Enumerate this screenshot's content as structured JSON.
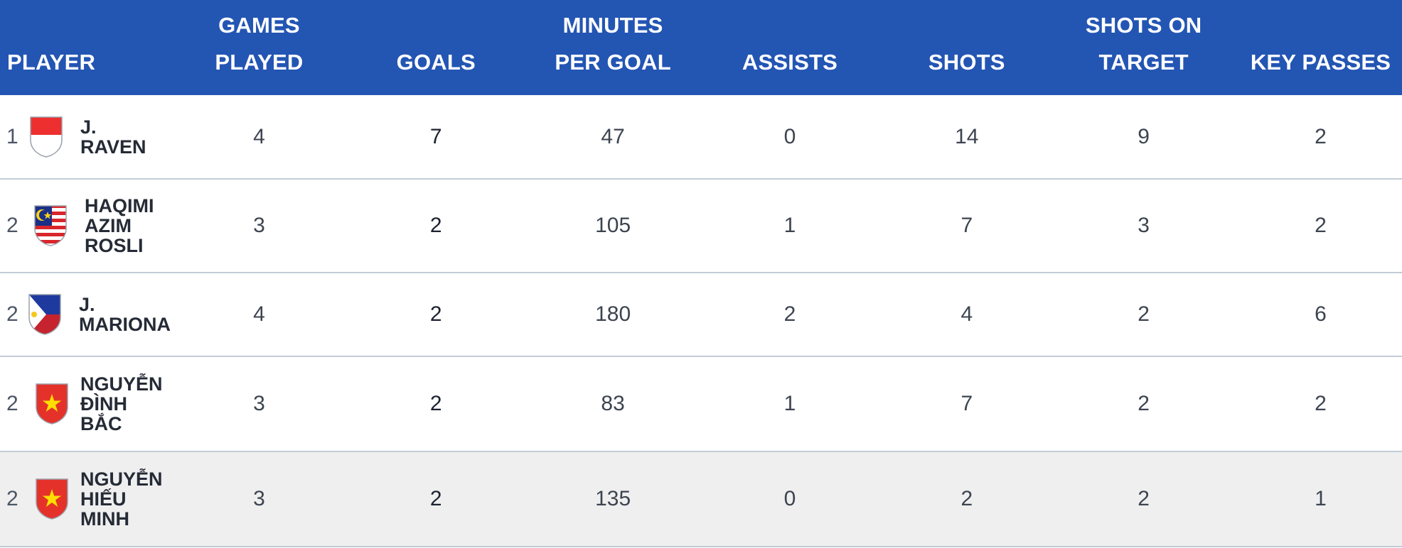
{
  "headers": {
    "player": "PLAYER",
    "games_played": [
      "GAMES",
      "PLAYED"
    ],
    "goals": "GOALS",
    "minutes_per_goal": [
      "MINUTES",
      "PER GOAL"
    ],
    "assists": "ASSISTS",
    "shots": "SHOTS",
    "shots_on_target": [
      "SHOTS ON",
      "TARGET"
    ],
    "key_passes": "KEY PASSES"
  },
  "colors": {
    "header_bg": "#2355b3",
    "row_divider": "#c3ccd6",
    "highlight_row": "#efefef"
  },
  "rows": [
    {
      "rank": "1",
      "flag": "indonesia-flag-icon",
      "name": "J.\nRAVEN",
      "games_played": "4",
      "goals": "7",
      "minutes_per_goal": "47",
      "assists": "0",
      "shots": "14",
      "shots_on_target": "9",
      "key_passes": "2"
    },
    {
      "rank": "2",
      "flag": "malaysia-flag-icon",
      "name": "HAQIMI\nAZIM\nROSLI",
      "games_played": "3",
      "goals": "2",
      "minutes_per_goal": "105",
      "assists": "1",
      "shots": "7",
      "shots_on_target": "3",
      "key_passes": "2"
    },
    {
      "rank": "2",
      "flag": "philippines-flag-icon",
      "name": "J.\nMARIONA",
      "games_played": "4",
      "goals": "2",
      "minutes_per_goal": "180",
      "assists": "2",
      "shots": "4",
      "shots_on_target": "2",
      "key_passes": "6"
    },
    {
      "rank": "2",
      "flag": "vietnam-flag-icon",
      "name": "NGUYỄN\nĐÌNH\nBẮC",
      "games_played": "3",
      "goals": "2",
      "minutes_per_goal": "83",
      "assists": "1",
      "shots": "7",
      "shots_on_target": "2",
      "key_passes": "2"
    },
    {
      "rank": "2",
      "flag": "vietnam-flag-icon",
      "name": "NGUYỄN\nHIẾU\nMINH",
      "games_played": "3",
      "goals": "2",
      "minutes_per_goal": "135",
      "assists": "0",
      "shots": "2",
      "shots_on_target": "2",
      "key_passes": "1"
    }
  ]
}
